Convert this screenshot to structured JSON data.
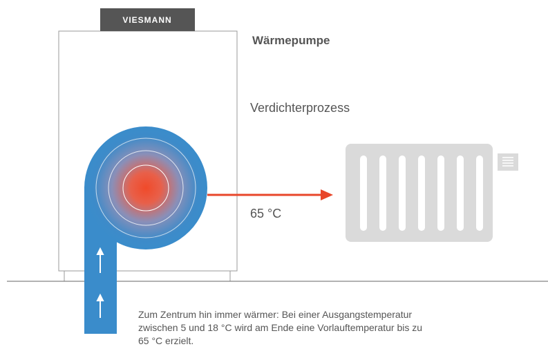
{
  "brand": "VIESMANN",
  "title": "Wärmepumpe",
  "process": "Verdichterprozess",
  "temperature": "65 °C",
  "caption": [
    "Zum Zentrum hin immer wärmer: Bei einer Ausgangstemperatur",
    "zwischen 5 und 18 °C wird am Ende eine Vorlauftemperatur bis zu",
    "65 °C erzielt."
  ]
}
